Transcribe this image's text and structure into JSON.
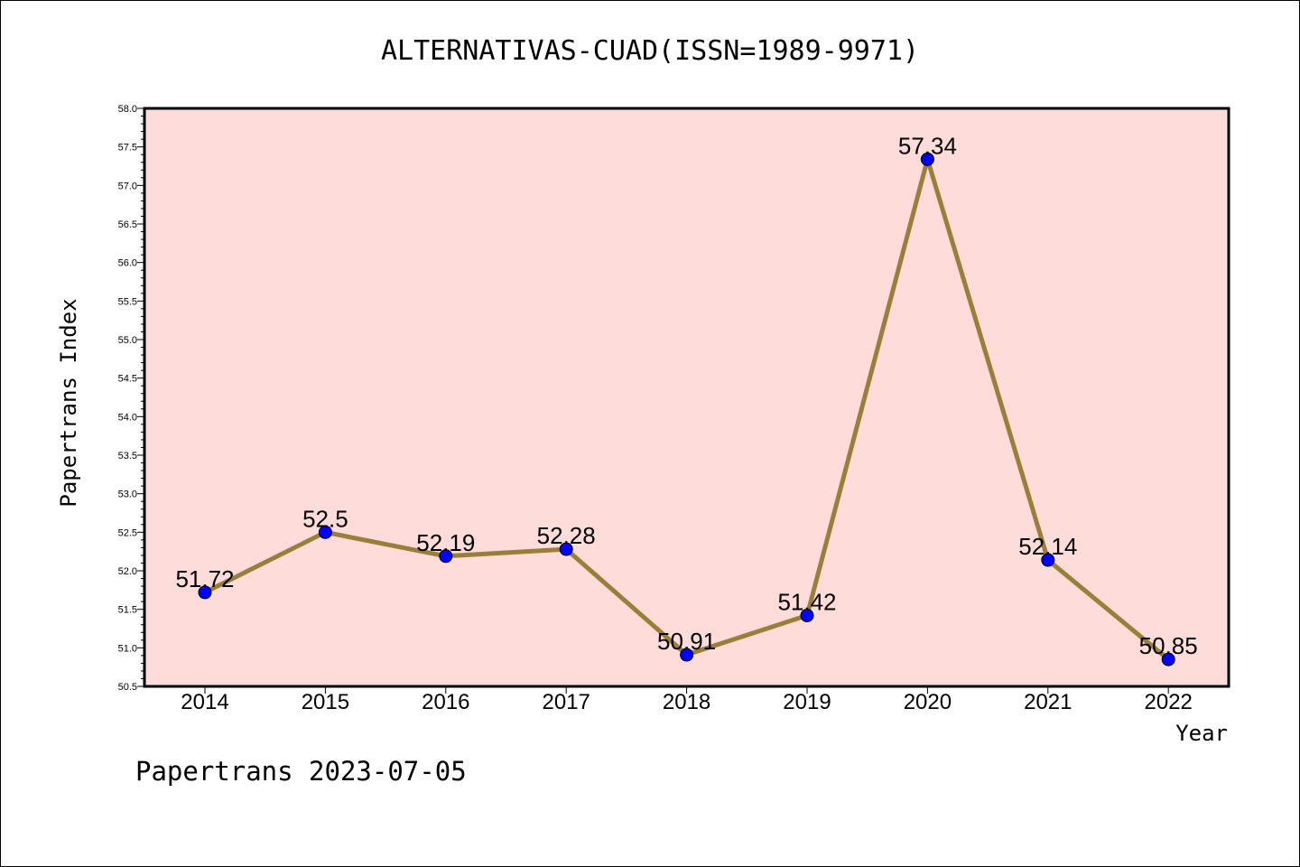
{
  "chart_data": {
    "type": "line",
    "title": "ALTERNATIVAS-CUAD(ISSN=1989-9971)",
    "xlabel": "Year",
    "ylabel": "Papertrans Index",
    "categories": [
      "2014",
      "2015",
      "2016",
      "2017",
      "2018",
      "2019",
      "2020",
      "2021",
      "2022"
    ],
    "values": [
      51.72,
      52.5,
      52.19,
      52.28,
      50.91,
      51.42,
      57.34,
      52.14,
      50.85
    ],
    "data_labels": [
      "51.72",
      "52.5",
      "52.19",
      "52.28",
      "50.91",
      "51.42",
      "57.34",
      "52.14",
      "50.85"
    ],
    "ylim": [
      50.5,
      58.0
    ],
    "yticks": [
      "50.5",
      "51.0",
      "51.5",
      "52.0",
      "52.5",
      "53.0",
      "53.5",
      "54.0",
      "54.5",
      "55.0",
      "55.5",
      "56.0",
      "56.5",
      "57.0",
      "57.5",
      "58.0"
    ],
    "grid": false,
    "colors": {
      "plot_background": "#fddcd9",
      "line": "#9a7f3a",
      "marker": "#0000ff"
    }
  },
  "footer": "Papertrans 2023-07-05"
}
